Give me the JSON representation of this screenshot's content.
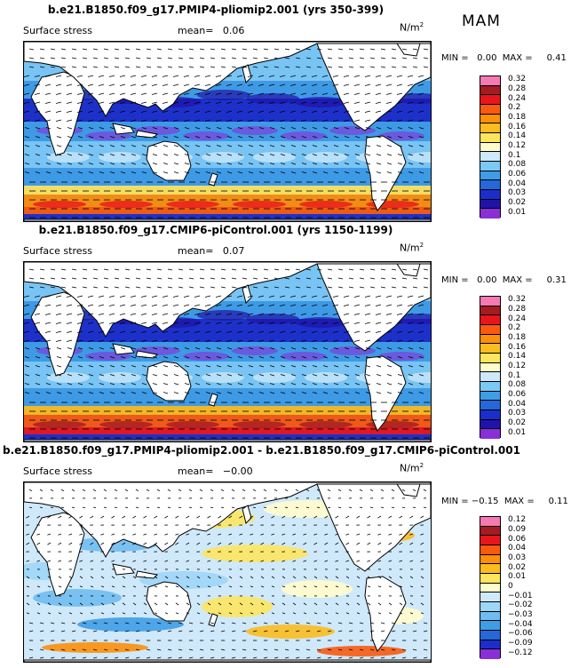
{
  "season": "MAM",
  "chart_data": [
    {
      "type": "heatmap",
      "title": "b.e21.B1850.f09_g17.PMIP4-pliomip2.001 (yrs 350-399)",
      "variable": "Surface stress",
      "mean_label": "mean=",
      "mean": "0.06",
      "units_base": "N/m",
      "units_exp": "2",
      "min_label": "MIN =",
      "min": "0.00",
      "max_label": "MAX =",
      "max": "0.41",
      "levels": [
        "0.32",
        "0.28",
        "0.24",
        "0.2",
        "0.18",
        "0.16",
        "0.14",
        "0.12",
        "0.1",
        "0.08",
        "0.06",
        "0.04",
        "0.03",
        "0.02",
        "0.01"
      ],
      "colors": [
        "#f57ab3",
        "#a31c22",
        "#e8151c",
        "#fa5a0f",
        "#fd8f09",
        "#fbbc1f",
        "#fde55e",
        "#fffccc",
        "#cfe9fb",
        "#7cc9f5",
        "#3f9de6",
        "#2667d9",
        "#1c2ec9",
        "#2013a8",
        "#8a2fd8"
      ]
    },
    {
      "type": "heatmap",
      "title": "b.e21.B1850.f09_g17.CMIP6-piControl.001 (yrs 1150-1199)",
      "variable": "Surface stress",
      "mean_label": "mean=",
      "mean": "0.07",
      "units_base": "N/m",
      "units_exp": "2",
      "min_label": "MIN =",
      "min": "0.00",
      "max_label": "MAX =",
      "max": "0.31",
      "levels": [
        "0.32",
        "0.28",
        "0.24",
        "0.2",
        "0.18",
        "0.16",
        "0.14",
        "0.12",
        "0.1",
        "0.08",
        "0.06",
        "0.04",
        "0.03",
        "0.02",
        "0.01"
      ],
      "colors": [
        "#f57ab3",
        "#a31c22",
        "#e8151c",
        "#fa5a0f",
        "#fd8f09",
        "#fbbc1f",
        "#fde55e",
        "#fffccc",
        "#cfe9fb",
        "#7cc9f5",
        "#3f9de6",
        "#2667d9",
        "#1c2ec9",
        "#2013a8",
        "#8a2fd8"
      ]
    },
    {
      "type": "heatmap",
      "title": "b.e21.B1850.f09_g17.PMIP4-pliomip2.001 - b.e21.B1850.f09_g17.CMIP6-piControl.001",
      "variable": "Surface stress",
      "mean_label": "mean=",
      "mean": "−0.00",
      "units_base": "N/m",
      "units_exp": "2",
      "min_label": "MIN =",
      "min": "−0.15",
      "max_label": "MAX =",
      "max": "0.11",
      "levels": [
        "0.12",
        "0.09",
        "0.06",
        "0.04",
        "0.03",
        "0.02",
        "0.01",
        "0",
        "−0.01",
        "−0.02",
        "−0.03",
        "−0.04",
        "−0.06",
        "−0.09",
        "−0.12"
      ],
      "colors": [
        "#f57ab3",
        "#a31c22",
        "#e8151c",
        "#fa5a0f",
        "#fd8f09",
        "#fbbc1f",
        "#fde55e",
        "#fffccc",
        "#cfe9fb",
        "#9dd6f7",
        "#6fbcf0",
        "#3f9de6",
        "#2667d9",
        "#1c2ec9",
        "#8a2fd8"
      ]
    }
  ]
}
